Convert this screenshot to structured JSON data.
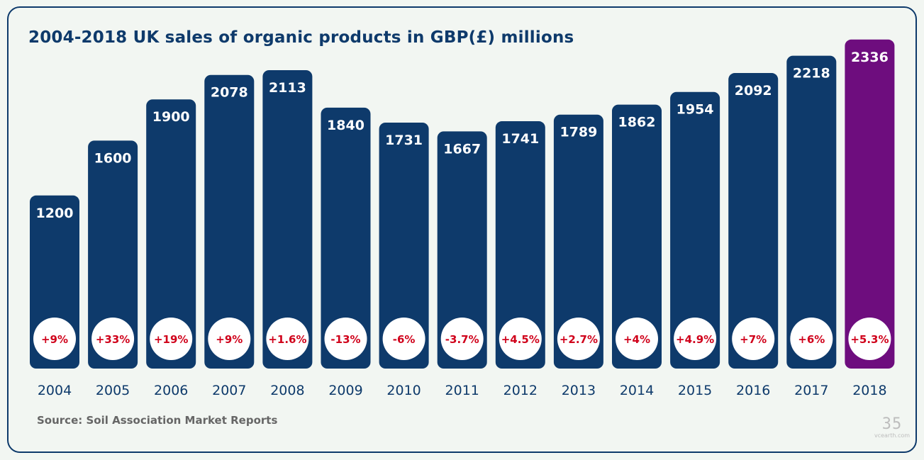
{
  "title": "2004-2018 UK sales of organic products in GBP(£) millions",
  "source": "Source: Soil Association Market Reports",
  "logo": {
    "mark": "35",
    "text": "vcearth.com"
  },
  "colors": {
    "bar": "#0e3a6b",
    "highlight_bar": "#6e0d7e",
    "change_text": "#d0021b",
    "circle": "#ffffff"
  },
  "chart_data": {
    "type": "bar",
    "title": "2004-2018 UK sales of organic products in GBP(£) millions",
    "xlabel": "",
    "ylabel": "",
    "categories": [
      "2004",
      "2005",
      "2006",
      "2007",
      "2008",
      "2009",
      "2010",
      "2011",
      "2012",
      "2013",
      "2014",
      "2015",
      "2016",
      "2017",
      "2018"
    ],
    "values": [
      1200,
      1600,
      1900,
      2078,
      2113,
      1840,
      1731,
      1667,
      1741,
      1789,
      1862,
      1954,
      2092,
      2218,
      2336
    ],
    "change_labels": [
      "+9%",
      "+33%",
      "+19%",
      "+9%",
      "+1.6%",
      "-13%",
      "-6%",
      "-3.7%",
      "+4.5%",
      "+2.7%",
      "+4%",
      "+4.9%",
      "+7%",
      "+6%",
      "+5.3%"
    ],
    "highlight_category": "2018",
    "grid": false,
    "legend": "none"
  }
}
